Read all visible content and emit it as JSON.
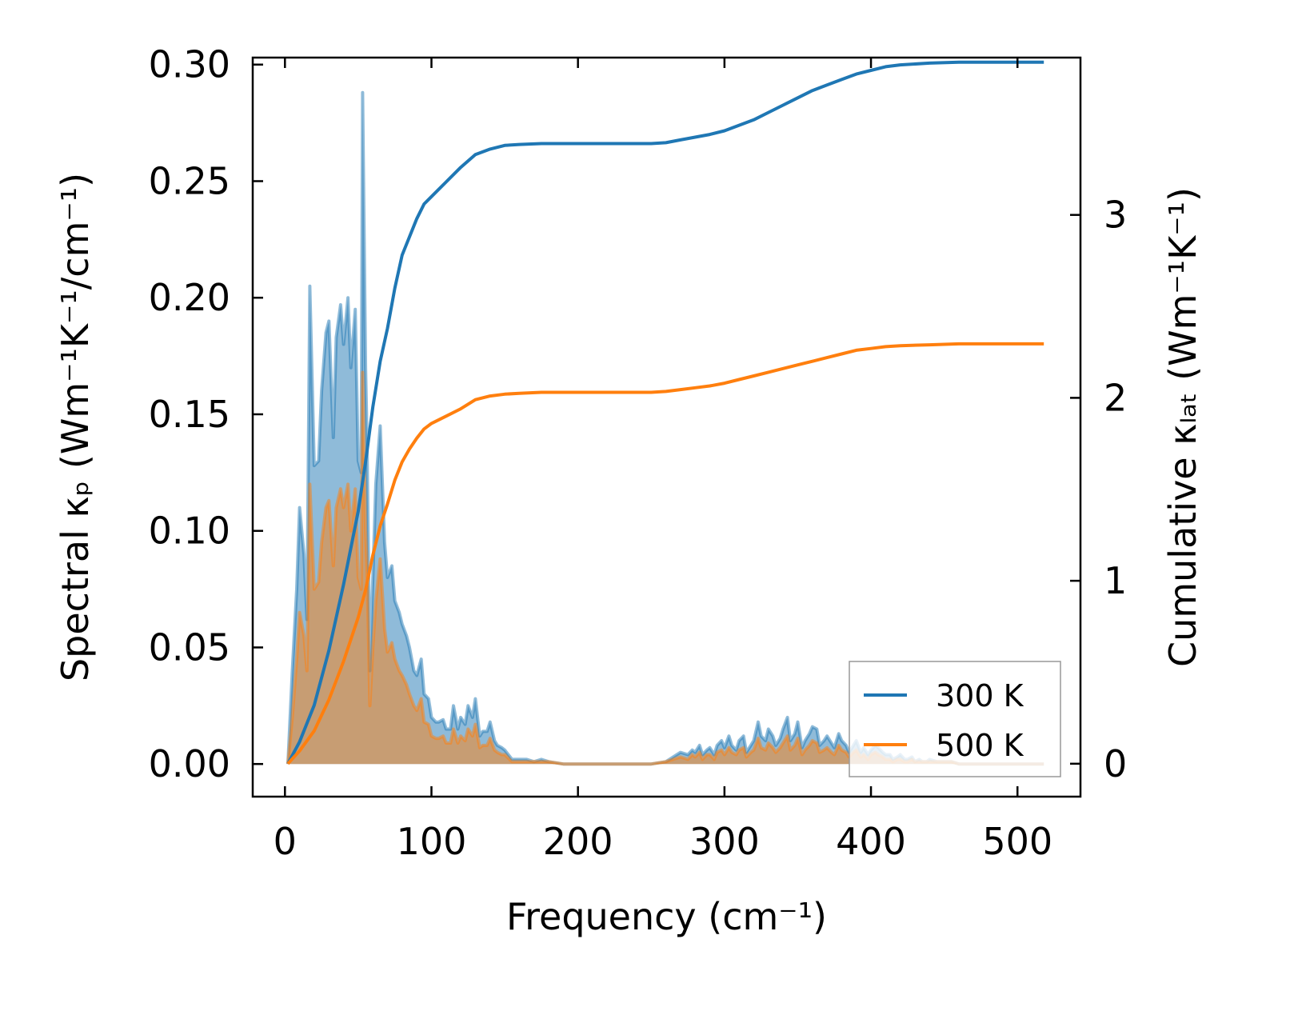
{
  "chart_data": {
    "type": "line",
    "title": "",
    "xlabel": "Frequency (cm⁻¹)",
    "ylabel": "Spectral κₚ (Wm⁻¹K⁻¹/cm⁻¹)",
    "ylabel_right": "Cumulative κₗₐₜ (Wm⁻¹K⁻¹)",
    "xlim": [
      -22,
      543
    ],
    "ylim": [
      -0.014,
      0.303
    ],
    "ylim_right": [
      -0.18,
      3.86
    ],
    "xticks": [
      "0",
      "100",
      "200",
      "300",
      "400",
      "500"
    ],
    "yticks": [
      "0.00",
      "0.05",
      "0.10",
      "0.15",
      "0.20",
      "0.25",
      "0.30"
    ],
    "yticks_right": [
      "0",
      "1",
      "2",
      "3"
    ],
    "legend": {
      "position": "lower-right",
      "entries": [
        "300 K",
        "500 K"
      ]
    },
    "x": [
      2,
      5,
      8,
      10,
      13,
      15,
      17,
      20,
      23,
      25,
      28,
      30,
      33,
      35,
      38,
      40,
      43,
      45,
      48,
      50,
      52,
      53,
      55,
      56,
      58,
      60,
      62,
      65,
      68,
      70,
      73,
      75,
      78,
      80,
      83,
      85,
      88,
      90,
      93,
      95,
      98,
      100,
      103,
      105,
      108,
      110,
      113,
      115,
      118,
      120,
      123,
      125,
      128,
      130,
      133,
      135,
      138,
      140,
      143,
      145,
      148,
      150,
      155,
      160,
      165,
      170,
      175,
      180,
      190,
      200,
      210,
      220,
      230,
      240,
      250,
      260,
      265,
      270,
      275,
      278,
      280,
      283,
      285,
      288,
      290,
      293,
      295,
      298,
      300,
      303,
      305,
      308,
      310,
      313,
      315,
      318,
      320,
      323,
      325,
      328,
      330,
      333,
      335,
      338,
      340,
      343,
      345,
      348,
      350,
      353,
      355,
      358,
      360,
      363,
      365,
      368,
      370,
      373,
      375,
      378,
      380,
      383,
      385,
      388,
      390,
      393,
      395,
      398,
      400,
      403,
      405,
      408,
      410,
      413,
      415,
      418,
      420,
      423,
      425,
      428,
      430,
      433,
      435,
      438,
      440,
      445,
      450,
      455,
      460,
      470,
      480,
      490,
      500,
      510,
      518
    ],
    "series": [
      {
        "name": "300 K",
        "axis": "left",
        "color": "#1f77b4",
        "values": [
          0,
          0.04,
          0.075,
          0.11,
          0.09,
          0.062,
          0.205,
          0.128,
          0.13,
          0.16,
          0.185,
          0.19,
          0.14,
          0.183,
          0.197,
          0.18,
          0.2,
          0.17,
          0.195,
          0.13,
          0.125,
          0.288,
          0.17,
          0.14,
          0.04,
          0.08,
          0.12,
          0.145,
          0.095,
          0.08,
          0.085,
          0.07,
          0.065,
          0.06,
          0.055,
          0.05,
          0.04,
          0.038,
          0.045,
          0.03,
          0.028,
          0.02,
          0.018,
          0.018,
          0.019,
          0.015,
          0.015,
          0.025,
          0.015,
          0.02,
          0.017,
          0.025,
          0.02,
          0.028,
          0.012,
          0.014,
          0.014,
          0.018,
          0.01,
          0.008,
          0.007,
          0.006,
          0.002,
          0.002,
          0.002,
          0.001,
          0.002,
          0.001,
          0,
          0,
          0,
          0,
          0,
          0,
          0,
          0.001,
          0.003,
          0.005,
          0.004,
          0.006,
          0.005,
          0.008,
          0.004,
          0.006,
          0.007,
          0.004,
          0.008,
          0.01,
          0.007,
          0.012,
          0.008,
          0.006,
          0.01,
          0.012,
          0.005,
          0.008,
          0.01,
          0.018,
          0.012,
          0.01,
          0.015,
          0.012,
          0.008,
          0.011,
          0.015,
          0.02,
          0.01,
          0.013,
          0.018,
          0.007,
          0.01,
          0.013,
          0.016,
          0.015,
          0.008,
          0.01,
          0.012,
          0.009,
          0.007,
          0.013,
          0.01,
          0.008,
          0.005,
          0.008,
          0.01,
          0.005,
          0.007,
          0.004,
          0.006,
          0.008,
          0.007,
          0.005,
          0.004,
          0.004,
          0.002,
          0.003,
          0.004,
          0.002,
          0.002,
          0.003,
          0.001,
          0.002,
          0.001,
          0.001,
          0.002,
          0.001,
          0.001,
          0.001,
          0,
          0,
          0,
          0,
          0,
          0,
          0
        ]
      },
      {
        "name": "500 K",
        "axis": "left",
        "color": "#ff7f0e",
        "values": [
          0,
          0.02,
          0.045,
          0.065,
          0.055,
          0.04,
          0.12,
          0.075,
          0.078,
          0.095,
          0.11,
          0.113,
          0.085,
          0.11,
          0.118,
          0.11,
          0.12,
          0.1,
          0.118,
          0.08,
          0.075,
          0.168,
          0.1,
          0.085,
          0.025,
          0.05,
          0.07,
          0.088,
          0.058,
          0.048,
          0.052,
          0.045,
          0.04,
          0.038,
          0.034,
          0.03,
          0.025,
          0.023,
          0.028,
          0.018,
          0.017,
          0.012,
          0.011,
          0.011,
          0.012,
          0.009,
          0.009,
          0.015,
          0.009,
          0.012,
          0.01,
          0.015,
          0.012,
          0.017,
          0.007,
          0.008,
          0.008,
          0.011,
          0.006,
          0.005,
          0.004,
          0.004,
          0.001,
          0.001,
          0.001,
          0.001,
          0.001,
          0.001,
          0,
          0,
          0,
          0,
          0,
          0,
          0,
          0.001,
          0.002,
          0.003,
          0.002,
          0.004,
          0.003,
          0.005,
          0.002,
          0.004,
          0.004,
          0.002,
          0.005,
          0.006,
          0.004,
          0.007,
          0.005,
          0.004,
          0.006,
          0.007,
          0.003,
          0.005,
          0.006,
          0.011,
          0.007,
          0.006,
          0.009,
          0.007,
          0.005,
          0.007,
          0.009,
          0.012,
          0.006,
          0.008,
          0.011,
          0.004,
          0.006,
          0.008,
          0.01,
          0.009,
          0.005,
          0.006,
          0.007,
          0.005,
          0.004,
          0.008,
          0.006,
          0.005,
          0.003,
          0.005,
          0.006,
          0.003,
          0.004,
          0.002,
          0.004,
          0.005,
          0.004,
          0.003,
          0.002,
          0.002,
          0.001,
          0.002,
          0.002,
          0.001,
          0.001,
          0.002,
          0.001,
          0.001,
          0.001,
          0.001,
          0.001,
          0.001,
          0.001,
          0.001,
          0,
          0,
          0,
          0,
          0,
          0,
          0
        ]
      },
      {
        "name": "300 K cumulative",
        "axis": "right",
        "color": "#1f77b4",
        "x": [
          2,
          10,
          20,
          30,
          40,
          50,
          55,
          60,
          65,
          70,
          75,
          80,
          85,
          90,
          95,
          100,
          110,
          120,
          130,
          140,
          150,
          160,
          175,
          200,
          225,
          250,
          260,
          270,
          280,
          290,
          300,
          310,
          320,
          330,
          340,
          350,
          360,
          370,
          380,
          390,
          400,
          410,
          420,
          440,
          460,
          480,
          500,
          518
        ],
        "values": [
          0,
          0.12,
          0.32,
          0.62,
          0.98,
          1.38,
          1.65,
          1.95,
          2.2,
          2.38,
          2.6,
          2.78,
          2.88,
          2.98,
          3.06,
          3.1,
          3.18,
          3.26,
          3.33,
          3.36,
          3.38,
          3.385,
          3.39,
          3.39,
          3.39,
          3.39,
          3.395,
          3.41,
          3.425,
          3.44,
          3.46,
          3.49,
          3.52,
          3.56,
          3.6,
          3.64,
          3.68,
          3.71,
          3.74,
          3.77,
          3.79,
          3.81,
          3.82,
          3.83,
          3.835,
          3.835,
          3.835,
          3.835
        ]
      },
      {
        "name": "500 K cumulative",
        "axis": "right",
        "color": "#ff7f0e",
        "x": [
          2,
          10,
          20,
          30,
          40,
          50,
          55,
          60,
          65,
          70,
          75,
          80,
          85,
          90,
          95,
          100,
          110,
          120,
          130,
          140,
          150,
          160,
          175,
          200,
          225,
          250,
          260,
          270,
          280,
          290,
          300,
          310,
          320,
          330,
          340,
          350,
          360,
          370,
          380,
          390,
          400,
          410,
          420,
          440,
          460,
          480,
          500,
          518
        ],
        "values": [
          0,
          0.07,
          0.18,
          0.35,
          0.56,
          0.8,
          0.95,
          1.14,
          1.3,
          1.42,
          1.55,
          1.65,
          1.72,
          1.78,
          1.83,
          1.86,
          1.9,
          1.94,
          1.99,
          2.01,
          2.02,
          2.025,
          2.03,
          2.03,
          2.03,
          2.03,
          2.035,
          2.045,
          2.055,
          2.065,
          2.08,
          2.1,
          2.12,
          2.14,
          2.16,
          2.18,
          2.2,
          2.22,
          2.24,
          2.26,
          2.27,
          2.28,
          2.285,
          2.29,
          2.295,
          2.295,
          2.295,
          2.295
        ]
      }
    ]
  }
}
